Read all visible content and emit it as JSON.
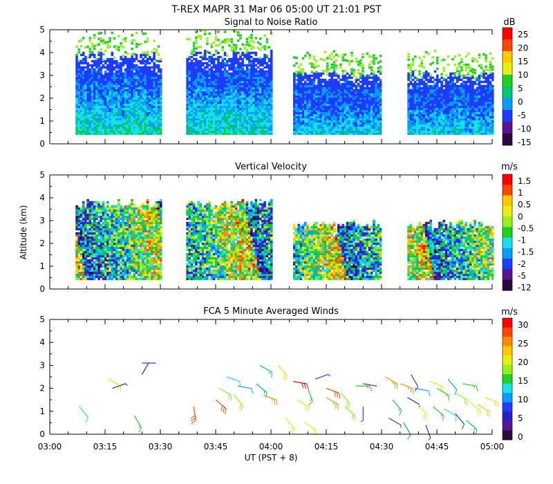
{
  "header": {
    "title": "T-REX   MAPR 31 Mar 06   05:00 UT   21:01   PST"
  },
  "colors": {
    "ramp": [
      "#2d0a3d",
      "#5a1490",
      "#2a1ec8",
      "#1e3cff",
      "#0a9bff",
      "#14e0f0",
      "#00c878",
      "#1ed21e",
      "#96f01e",
      "#e6f00a",
      "#ffc800",
      "#ff8c00",
      "#ff4600",
      "#ff0000"
    ],
    "axis": "#000000"
  },
  "chart_data": [
    {
      "type": "heatmap",
      "title": "Signal to Noise Ratio",
      "xlabel": "",
      "ylabel": "",
      "ylim": [
        0,
        5
      ],
      "yticks": [
        "0",
        "1",
        "2",
        "3",
        "4",
        "5"
      ],
      "xlim": [
        "03:00",
        "05:00"
      ],
      "colorbar": {
        "unit": "dB",
        "labels": [
          "25",
          "20",
          "15",
          "10",
          "5",
          "0",
          "-5",
          "-10",
          "-15"
        ],
        "levels": 10
      },
      "data_segments_ut": [
        [
          "03:07",
          "03:30"
        ],
        [
          "03:37",
          "04:00"
        ],
        [
          "04:06",
          "04:30"
        ],
        [
          "04:37",
          "05:00"
        ]
      ],
      "typical_top_km": [
        3.8,
        3.9,
        3.0,
        3.0
      ],
      "range_km": [
        0.4,
        3.9
      ]
    },
    {
      "type": "heatmap",
      "title": "Vertical Velocity",
      "ylabel": "Altitude (km)",
      "ylim": [
        0,
        5
      ],
      "yticks": [
        "0",
        "1",
        "2",
        "3",
        "4",
        "5"
      ],
      "xlim": [
        "03:00",
        "05:00"
      ],
      "colorbar": {
        "unit": "m/s",
        "labels": [
          "1.5",
          "1",
          "0.5",
          "0",
          "-0.5",
          "-1",
          "-1.5",
          "-2",
          "-5",
          "-12"
        ],
        "levels": 11
      },
      "data_segments_ut": [
        [
          "03:07",
          "03:30"
        ],
        [
          "03:37",
          "04:00"
        ],
        [
          "04:06",
          "04:30"
        ],
        [
          "04:37",
          "05:00"
        ]
      ],
      "range_km": [
        0.4,
        3.8
      ]
    },
    {
      "type": "scatter",
      "title": "FCA 5 Minute Averaged Winds",
      "xlabel": "UT  (PST + 8)",
      "ylim": [
        0,
        5
      ],
      "yticks": [
        "0",
        "1",
        "2",
        "3",
        "4",
        "5"
      ],
      "xticks": [
        "03:00",
        "03:15",
        "03:30",
        "03:45",
        "04:00",
        "04:15",
        "04:30",
        "04:45",
        "05:00"
      ],
      "colorbar": {
        "unit": "m/s",
        "labels": [
          "30",
          "25",
          "20",
          "15",
          "10",
          "5",
          "0"
        ],
        "levels": 13
      },
      "barbs": [
        {
          "t": 8,
          "alt": 1.2,
          "spd": 12,
          "dir": 320
        },
        {
          "t": 16,
          "alt": 2.4,
          "spd": 20,
          "dir": 300
        },
        {
          "t": 17,
          "alt": 2.0,
          "spd": 5,
          "dir": 250
        },
        {
          "t": 25,
          "alt": 3.1,
          "spd": 2,
          "dir": 270
        },
        {
          "t": 25,
          "alt": 2.6,
          "spd": 2,
          "dir": 210
        },
        {
          "t": 23,
          "alt": 0.8,
          "spd": 15,
          "dir": 330
        },
        {
          "t": 39,
          "alt": 1.2,
          "spd": 28,
          "dir": 350
        },
        {
          "t": 45,
          "alt": 1.5,
          "spd": 28,
          "dir": 310
        },
        {
          "t": 46,
          "alt": 2.0,
          "spd": 18,
          "dir": 300
        },
        {
          "t": 48,
          "alt": 2.5,
          "spd": 12,
          "dir": 290
        },
        {
          "t": 51,
          "alt": 2.1,
          "spd": 10,
          "dir": 280
        },
        {
          "t": 50,
          "alt": 1.7,
          "spd": 18,
          "dir": 320
        },
        {
          "t": 57,
          "alt": 3.0,
          "spd": 14,
          "dir": 300
        },
        {
          "t": 58,
          "alt": 1.7,
          "spd": 26,
          "dir": 290
        },
        {
          "t": 56,
          "alt": 2.2,
          "spd": 14,
          "dir": 310
        },
        {
          "t": 62,
          "alt": 3.0,
          "spd": 20,
          "dir": 320
        },
        {
          "t": 66,
          "alt": 2.3,
          "spd": 30,
          "dir": 280
        },
        {
          "t": 67,
          "alt": 1.5,
          "spd": 20,
          "dir": 300
        },
        {
          "t": 70,
          "alt": 2.0,
          "spd": 16,
          "dir": 340
        },
        {
          "t": 72,
          "alt": 2.4,
          "spd": 6,
          "dir": 250
        },
        {
          "t": 75,
          "alt": 2.0,
          "spd": 28,
          "dir": 290
        },
        {
          "t": 75,
          "alt": 1.6,
          "spd": 26,
          "dir": 300
        },
        {
          "t": 79,
          "alt": 1.8,
          "spd": 18,
          "dir": 320
        },
        {
          "t": 80,
          "alt": 1.2,
          "spd": 18,
          "dir": 310
        },
        {
          "t": 83,
          "alt": 2.1,
          "spd": 15,
          "dir": 270
        },
        {
          "t": 85,
          "alt": 2.2,
          "spd": 2,
          "dir": 280
        },
        {
          "t": 85,
          "alt": 1.2,
          "spd": 6,
          "dir": 0
        },
        {
          "t": 91,
          "alt": 2.5,
          "spd": 25,
          "dir": 300
        },
        {
          "t": 95,
          "alt": 2.2,
          "spd": 26,
          "dir": 290
        },
        {
          "t": 98,
          "alt": 2.6,
          "spd": 8,
          "dir": 330
        },
        {
          "t": 99,
          "alt": 2.0,
          "spd": 10,
          "dir": 280
        },
        {
          "t": 103,
          "alt": 2.3,
          "spd": 20,
          "dir": 290
        },
        {
          "t": 105,
          "alt": 2.0,
          "spd": 16,
          "dir": 300
        },
        {
          "t": 108,
          "alt": 2.4,
          "spd": 10,
          "dir": 320
        },
        {
          "t": 110,
          "alt": 1.8,
          "spd": 18,
          "dir": 300
        },
        {
          "t": 112,
          "alt": 2.2,
          "spd": 15,
          "dir": 280
        },
        {
          "t": 114,
          "alt": 1.4,
          "spd": 21,
          "dir": 310
        },
        {
          "t": 93,
          "alt": 1.5,
          "spd": 14,
          "dir": 320
        },
        {
          "t": 97,
          "alt": 1.6,
          "spd": 4,
          "dir": 300
        },
        {
          "t": 100,
          "alt": 1.3,
          "spd": 20,
          "dir": 320
        },
        {
          "t": 104,
          "alt": 1.2,
          "spd": 16,
          "dir": 310
        },
        {
          "t": 107,
          "alt": 1.1,
          "spd": 12,
          "dir": 300
        },
        {
          "t": 110,
          "alt": 0.9,
          "spd": 8,
          "dir": 320
        },
        {
          "t": 116,
          "alt": 1.3,
          "spd": 22,
          "dir": 300
        },
        {
          "t": 118,
          "alt": 1.6,
          "spd": 20,
          "dir": 290
        },
        {
          "t": 92,
          "alt": 0.7,
          "spd": 7,
          "dir": 300
        },
        {
          "t": 96,
          "alt": 0.5,
          "spd": 10,
          "dir": 330
        },
        {
          "t": 102,
          "alt": 0.4,
          "spd": 3,
          "dir": 340
        },
        {
          "t": 113,
          "alt": 0.6,
          "spd": 14,
          "dir": 310
        },
        {
          "t": 64,
          "alt": 0.7,
          "spd": 20,
          "dir": 320
        },
        {
          "t": 69,
          "alt": 0.5,
          "spd": 20,
          "dir": 300
        }
      ]
    }
  ]
}
